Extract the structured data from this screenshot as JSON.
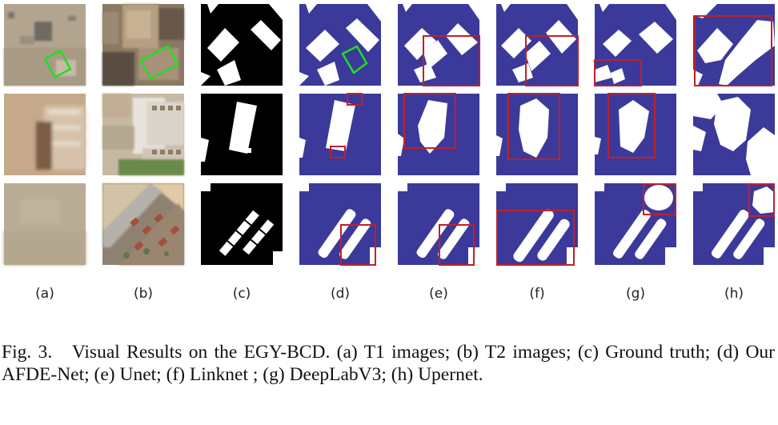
{
  "figure": {
    "column_labels": [
      "(a)",
      "(b)",
      "(c)",
      "(d)",
      "(e)",
      "(f)",
      "(g)",
      "(h)"
    ],
    "rows": 3,
    "colors": {
      "change_mask_background": "#3b3a9a",
      "change_mask_foreground": "#ffffff",
      "ground_truth_background": "#000000",
      "highlight_box": "#c0202a",
      "correct_box": "#22dd22"
    }
  },
  "caption": {
    "label": "Fig. 3.",
    "text": "Visual Results on the EGY-BCD. (a) T1 images; (b) T2 images; (c) Ground truth; (d) Our AFDE-Net; (e) Unet; (f) Linknet ; (g) DeepLabV3; (h) Upernet."
  }
}
